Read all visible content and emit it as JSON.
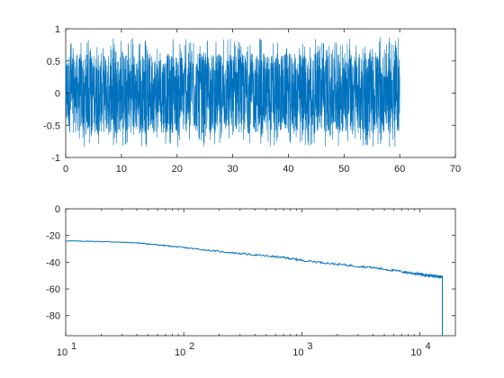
{
  "chart_data": [
    {
      "type": "line",
      "title": "",
      "xlabel": "",
      "ylabel": "",
      "xlim": [
        0,
        70
      ],
      "ylim": [
        -1,
        1
      ],
      "xscale": "linear",
      "x_ticks": [
        0,
        10,
        20,
        30,
        40,
        50,
        60,
        70
      ],
      "y_ticks": [
        -1,
        -0.5,
        0,
        0.5,
        1
      ],
      "x_tick_labels": [
        "0",
        "10",
        "20",
        "30",
        "40",
        "50",
        "60",
        "70"
      ],
      "y_tick_labels": [
        "-1",
        "-0.5",
        "0",
        "0.5",
        "1"
      ],
      "grid": false,
      "color": "#0072BD",
      "signal": {
        "x_start": 0,
        "x_end": 60,
        "band_low": -0.62,
        "band_high": 0.62,
        "spike_max": 0.87,
        "spike_min": -0.84
      }
    },
    {
      "type": "line",
      "title": "",
      "xlabel": "",
      "ylabel": "",
      "xlim": [
        10,
        20000
      ],
      "ylim": [
        -95,
        0
      ],
      "xscale": "log",
      "x_ticks": [
        10,
        100,
        1000,
        10000
      ],
      "y_ticks": [
        -80,
        -60,
        -40,
        -20,
        0
      ],
      "x_tick_labels": [
        {
          "base": "10",
          "exp": "1"
        },
        {
          "base": "10",
          "exp": "2"
        },
        {
          "base": "10",
          "exp": "3"
        },
        {
          "base": "10",
          "exp": "4"
        }
      ],
      "y_tick_labels": [
        "-80",
        "-60",
        "-40",
        "-20",
        "0"
      ],
      "grid": false,
      "color": "#0072BD",
      "series": [
        {
          "x": [
            10,
            20,
            40,
            60,
            100,
            200,
            400,
            700,
            1000,
            2000,
            4000,
            7000,
            10000,
            12000,
            14000,
            15000,
            15500,
            15500
          ],
          "y": [
            -24,
            -24.5,
            -25.5,
            -27,
            -29,
            -32,
            -34.5,
            -36.5,
            -38.5,
            -41.5,
            -44,
            -47,
            -49,
            -50,
            -50.5,
            -51,
            -51,
            -95
          ]
        }
      ]
    }
  ]
}
